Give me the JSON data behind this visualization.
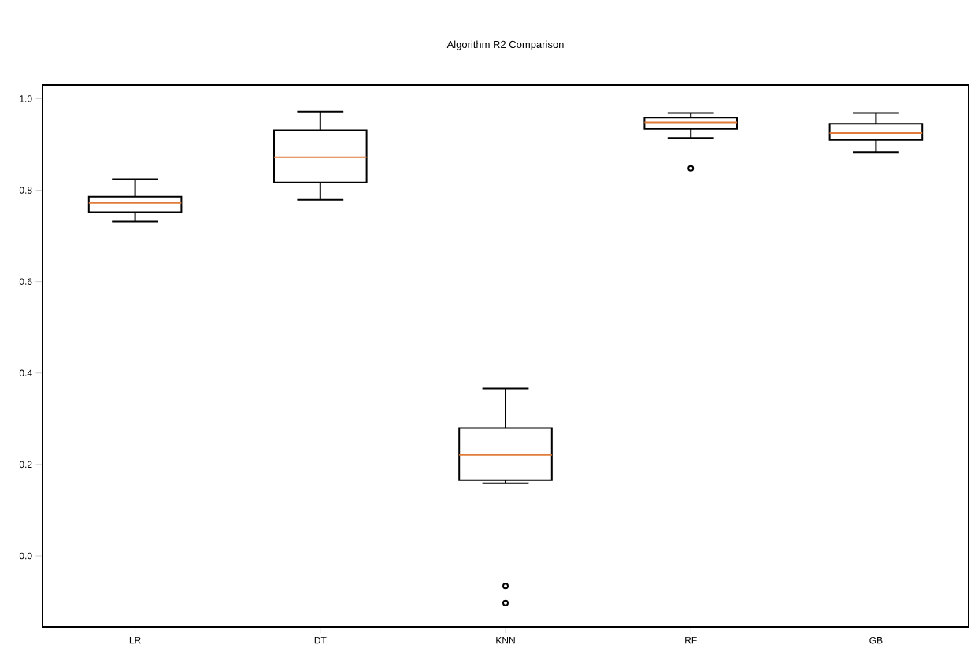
{
  "chart_data": {
    "type": "box",
    "title": "Algorithm R2 Comparison",
    "categories": [
      "LR",
      "DT",
      "KNN",
      "RF",
      "GB"
    ],
    "series": [
      {
        "color": "#000000",
        "boxes": [
          {
            "low": 0.731,
            "q1": 0.752,
            "median": 0.772,
            "q3": 0.786,
            "high": 0.824
          },
          {
            "low": 0.779,
            "q1": 0.817,
            "median": 0.872,
            "q3": 0.931,
            "high": 0.972
          },
          {
            "low": 0.159,
            "q1": 0.166,
            "median": 0.221,
            "q3": 0.28,
            "high": 0.366,
            "outliers": [
              -0.066,
              -0.103
            ]
          },
          {
            "low": 0.914,
            "q1": 0.934,
            "median": 0.948,
            "q3": 0.959,
            "high": 0.969,
            "outliers": [
              0.848
            ]
          },
          {
            "low": 0.883,
            "q1": 0.91,
            "median": 0.925,
            "q3": 0.945,
            "high": 0.969
          }
        ]
      }
    ],
    "ylim": [
      -0.155,
      1.03
    ],
    "yticks": [
      {
        "value": 0,
        "label": "0.0"
      },
      0.2,
      0.4,
      0.6,
      0.8,
      {
        "value": 1,
        "label": "1.0"
      }
    ],
    "marker": "circle",
    "grid": false
  }
}
